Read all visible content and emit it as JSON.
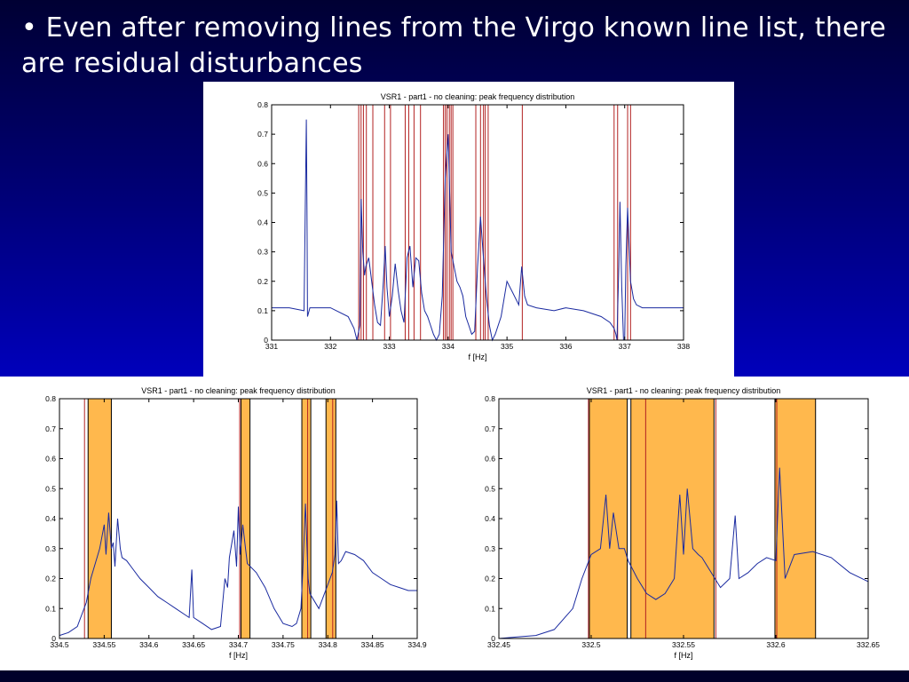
{
  "slide": {
    "bullet_text": "• Even after removing lines from the Virgo known line list, there are residual disturbances"
  },
  "colors": {
    "background_top": "#000033",
    "background_bottom": "#0000dd",
    "trace": "#1a2aa0",
    "known_line": "#b22222",
    "highlight_fill": "#ffb84d",
    "highlight_border": "#000000"
  },
  "chart_data": [
    {
      "id": "top",
      "type": "line",
      "title": "VSR1 - part1 - no cleaning: peak frequency distribution",
      "xlabel": "f [Hz]",
      "ylabel": "",
      "xlim": [
        331,
        338
      ],
      "ylim": [
        0,
        0.8
      ],
      "xticks": [
        "331",
        "332",
        "333",
        "334",
        "335",
        "336",
        "337",
        "338"
      ],
      "yticks": [
        "0",
        "0.1",
        "0.2",
        "0.3",
        "0.4",
        "0.5",
        "0.6",
        "0.7",
        "0.8"
      ],
      "series": [
        {
          "x": [
            331.0,
            331.3,
            331.55,
            331.59,
            331.6,
            331.61,
            331.65,
            332.0,
            332.3,
            332.4,
            332.45,
            332.5,
            332.52,
            332.55,
            332.58,
            332.6,
            332.65,
            332.7,
            332.75,
            332.8,
            332.85,
            332.9,
            332.93,
            332.96,
            333.0,
            333.05,
            333.1,
            333.15,
            333.2,
            333.25,
            333.3,
            333.35,
            333.4,
            333.45,
            333.5,
            333.55,
            333.6,
            333.65,
            333.7,
            333.75,
            333.8,
            333.85,
            333.9,
            333.95,
            334.0,
            334.05,
            334.1,
            334.15,
            334.2,
            334.25,
            334.3,
            334.35,
            334.4,
            334.45,
            334.5,
            334.55,
            334.6,
            334.65,
            334.7,
            334.75,
            334.8,
            334.9,
            335.0,
            335.1,
            335.2,
            335.25,
            335.3,
            335.35,
            335.5,
            335.8,
            336.0,
            336.3,
            336.6,
            336.75,
            336.82,
            336.85,
            336.87,
            336.88,
            336.9,
            336.92,
            336.95,
            336.98,
            337.0,
            337.02,
            337.05,
            337.08,
            337.1,
            337.15,
            337.2,
            337.3,
            337.6,
            338.0
          ],
          "y": [
            0.11,
            0.11,
            0.1,
            0.75,
            0.45,
            0.08,
            0.11,
            0.11,
            0.08,
            0.04,
            0.0,
            0.05,
            0.48,
            0.3,
            0.22,
            0.25,
            0.28,
            0.2,
            0.12,
            0.06,
            0.05,
            0.2,
            0.32,
            0.18,
            0.08,
            0.15,
            0.26,
            0.17,
            0.1,
            0.06,
            0.28,
            0.32,
            0.18,
            0.28,
            0.27,
            0.16,
            0.1,
            0.08,
            0.05,
            0.02,
            0.0,
            0.02,
            0.15,
            0.55,
            0.7,
            0.3,
            0.25,
            0.2,
            0.18,
            0.15,
            0.08,
            0.05,
            0.02,
            0.03,
            0.25,
            0.42,
            0.28,
            0.15,
            0.05,
            0.0,
            0.02,
            0.08,
            0.2,
            0.16,
            0.12,
            0.25,
            0.15,
            0.12,
            0.11,
            0.1,
            0.11,
            0.1,
            0.08,
            0.06,
            0.04,
            0.02,
            0.0,
            0.1,
            0.25,
            0.47,
            0.18,
            0.0,
            0.0,
            0.25,
            0.45,
            0.3,
            0.2,
            0.14,
            0.12,
            0.11,
            0.11,
            0.11
          ]
        }
      ],
      "known_lines": [
        332.48,
        332.52,
        332.56,
        332.61,
        332.72,
        332.92,
        333.02,
        333.27,
        333.33,
        333.42,
        333.53,
        333.92,
        333.95,
        333.98,
        334.02,
        334.05,
        334.08,
        334.47,
        334.55,
        334.6,
        334.63,
        334.68,
        335.26,
        336.82,
        336.88,
        337.05,
        337.1
      ],
      "highlight_regions": []
    },
    {
      "id": "bottom-left",
      "type": "line",
      "title": "VSR1 - part1 - no cleaning: peak frequency distribution",
      "xlabel": "f [Hz]",
      "ylabel": "",
      "xlim": [
        334.5,
        334.9
      ],
      "ylim": [
        0,
        0.8
      ],
      "xticks": [
        "334.5",
        "334.55",
        "334.6",
        "334.65",
        "334.7",
        "334.75",
        "334.8",
        "334.85",
        "334.9"
      ],
      "yticks": [
        "0",
        "0.1",
        "0.2",
        "0.3",
        "0.4",
        "0.5",
        "0.6",
        "0.7",
        "0.8"
      ],
      "series": [
        {
          "x": [
            334.5,
            334.51,
            334.52,
            334.53,
            334.535,
            334.54,
            334.545,
            334.55,
            334.552,
            334.555,
            334.558,
            334.56,
            334.562,
            334.565,
            334.568,
            334.57,
            334.575,
            334.58,
            334.59,
            334.6,
            334.61,
            334.62,
            334.63,
            334.64,
            334.645,
            334.648,
            334.65,
            334.66,
            334.67,
            334.68,
            334.685,
            334.688,
            334.69,
            334.695,
            334.698,
            334.7,
            334.702,
            334.705,
            334.708,
            334.71,
            334.72,
            334.73,
            334.74,
            334.75,
            334.76,
            334.765,
            334.77,
            334.772,
            334.775,
            334.778,
            334.78,
            334.79,
            334.8,
            334.805,
            334.808,
            334.81,
            334.812,
            334.815,
            334.82,
            334.83,
            334.84,
            334.85,
            334.86,
            334.87,
            334.88,
            334.89,
            334.9
          ],
          "y": [
            0.01,
            0.02,
            0.04,
            0.12,
            0.2,
            0.25,
            0.3,
            0.38,
            0.28,
            0.42,
            0.3,
            0.32,
            0.24,
            0.4,
            0.3,
            0.27,
            0.26,
            0.24,
            0.2,
            0.17,
            0.14,
            0.12,
            0.1,
            0.08,
            0.07,
            0.23,
            0.07,
            0.05,
            0.03,
            0.04,
            0.2,
            0.17,
            0.27,
            0.36,
            0.24,
            0.44,
            0.28,
            0.38,
            0.3,
            0.25,
            0.22,
            0.17,
            0.1,
            0.05,
            0.04,
            0.05,
            0.1,
            0.22,
            0.45,
            0.2,
            0.15,
            0.1,
            0.18,
            0.22,
            0.28,
            0.46,
            0.25,
            0.26,
            0.29,
            0.28,
            0.26,
            0.22,
            0.2,
            0.18,
            0.17,
            0.16,
            0.16
          ]
        }
      ],
      "known_lines": [
        334.528,
        334.7015,
        334.7775,
        334.8055
      ],
      "highlight_regions": [
        [
          334.532,
          334.558
        ],
        [
          334.703,
          334.713
        ],
        [
          334.771,
          334.781
        ],
        [
          334.798,
          334.809
        ]
      ]
    },
    {
      "id": "bottom-right",
      "type": "line",
      "title": "VSR1 - part1 - no cleaning: peak frequency distribution",
      "xlabel": "f [Hz]",
      "ylabel": "",
      "xlim": [
        332.45,
        332.65
      ],
      "ylim": [
        0,
        0.8
      ],
      "xticks": [
        "332.45",
        "332.5",
        "332.55",
        "332.6",
        "332.65"
      ],
      "yticks": [
        "0",
        "0.1",
        "0.2",
        "0.3",
        "0.4",
        "0.5",
        "0.6",
        "0.7",
        "0.8"
      ],
      "series": [
        {
          "x": [
            332.45,
            332.46,
            332.47,
            332.48,
            332.49,
            332.495,
            332.5,
            332.505,
            332.508,
            332.51,
            332.512,
            332.515,
            332.518,
            332.52,
            332.525,
            332.53,
            332.535,
            332.54,
            332.545,
            332.548,
            332.55,
            332.552,
            332.555,
            332.558,
            332.56,
            332.565,
            332.57,
            332.575,
            332.578,
            332.58,
            332.585,
            332.59,
            332.595,
            332.6,
            332.602,
            332.605,
            332.61,
            332.62,
            332.63,
            332.64,
            332.65
          ],
          "y": [
            0.0,
            0.005,
            0.01,
            0.03,
            0.1,
            0.2,
            0.28,
            0.3,
            0.48,
            0.3,
            0.42,
            0.3,
            0.3,
            0.26,
            0.2,
            0.15,
            0.13,
            0.15,
            0.2,
            0.48,
            0.28,
            0.5,
            0.3,
            0.28,
            0.27,
            0.22,
            0.17,
            0.2,
            0.41,
            0.2,
            0.22,
            0.25,
            0.27,
            0.26,
            0.57,
            0.2,
            0.28,
            0.29,
            0.27,
            0.22,
            0.19
          ]
        }
      ],
      "known_lines": [
        332.4985,
        332.5295,
        332.5675,
        332.6005
      ],
      "highlight_regions": [
        [
          332.499,
          332.5195
        ],
        [
          332.5215,
          332.5665
        ],
        [
          332.5995,
          332.6215
        ]
      ]
    }
  ]
}
